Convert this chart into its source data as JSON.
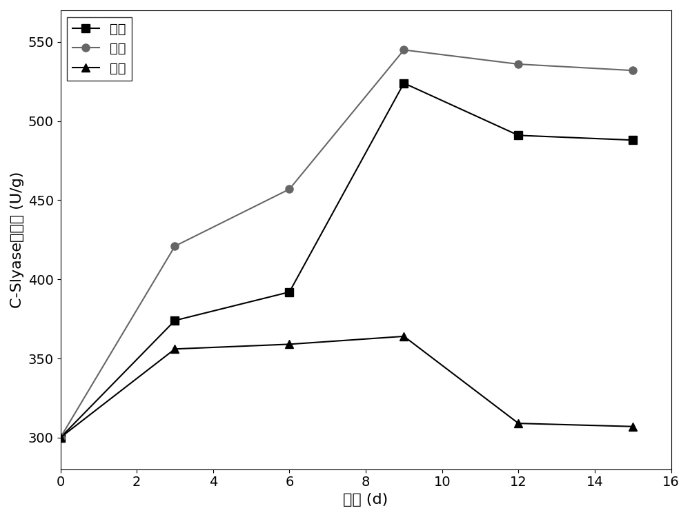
{
  "x": [
    0,
    3,
    6,
    9,
    12,
    15
  ],
  "nanomi_y": [
    300,
    374,
    392,
    524,
    491,
    488
  ],
  "putong_y": [
    300,
    421,
    457,
    545,
    536,
    532
  ],
  "kaikou_y": [
    300,
    356,
    359,
    364,
    309,
    307
  ],
  "nanomi_color": "#000000",
  "putong_color": "#666666",
  "kaikou_color": "#000000",
  "nanomi_label": "纳米",
  "putong_label": "普通",
  "kaikou_label": "开口",
  "xlabel": "时间 (d)",
  "ylabel": "C-Slyase比活力 (U/g)",
  "xlim": [
    0,
    16
  ],
  "ylim": [
    280,
    570
  ],
  "xticks": [
    0,
    2,
    4,
    6,
    8,
    10,
    12,
    14,
    16
  ],
  "yticks": [
    300,
    350,
    400,
    450,
    500,
    550
  ],
  "background_color": "#ffffff",
  "legend_loc": "upper left",
  "linewidth": 1.5,
  "markersize": 8
}
